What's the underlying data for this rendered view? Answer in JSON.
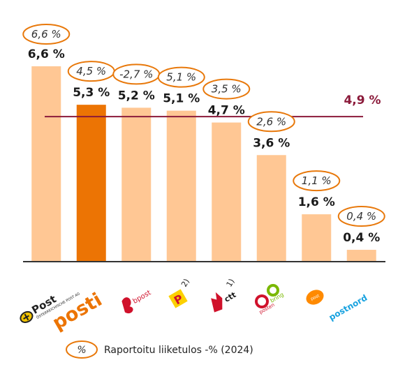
{
  "colors": {
    "bar": "#ffc794",
    "bar_highlight": "#ec7404",
    "average_line": "#8b1a3a",
    "oval_stroke": "#e8780a",
    "axis": "#333333"
  },
  "chart_data": {
    "type": "bar",
    "categories": [
      "Post",
      "posti",
      "bpost",
      "P",
      "ctt",
      "posten bring",
      "post",
      "postnord"
    ],
    "values": [
      6.6,
      5.3,
      5.2,
      5.1,
      4.7,
      3.6,
      1.6,
      0.4
    ],
    "value_labels": [
      "6,6 %",
      "5,3 %",
      "5,2 %",
      "5,1 %",
      "4,7 %",
      "3,6 %",
      "1,6 %",
      "0,4 %"
    ],
    "reported_labels": [
      "6,6 %",
      "4,5 %",
      "-2,7 %",
      "5,1 %",
      "3,5 %",
      "2,6 %",
      "1,1 %",
      "0,4 %"
    ],
    "highlight_index": 1,
    "average": 4.9,
    "average_label": "4,9 %",
    "ylim": [
      0,
      7.2
    ],
    "grid": false,
    "footnotes": [
      "",
      "",
      "",
      "2)",
      "1)",
      "",
      "",
      ""
    ],
    "legend": {
      "symbol": "%",
      "label": "Raportoitu liiketulos -% (2024)",
      "placement": "bottom-center"
    }
  },
  "logos": {
    "austria_main": "Post",
    "austria_sub": "ÖSTERREICHISCHE POST AG",
    "posti": "posti",
    "bpost": "bpost",
    "swiss": "P",
    "ctt": "ctt",
    "posten": "posten",
    "bring": "bring",
    "postnl": "post",
    "postnord": "postnord"
  }
}
